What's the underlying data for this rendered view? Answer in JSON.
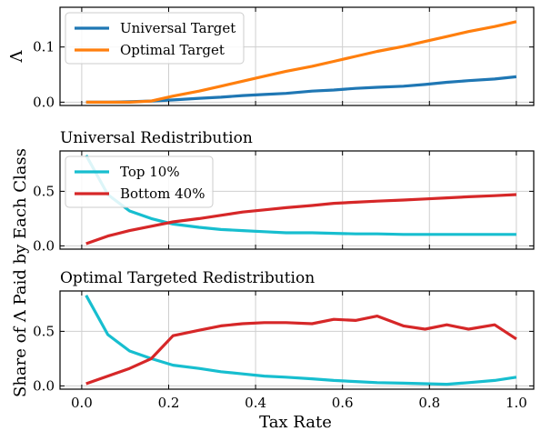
{
  "chart_data": [
    {
      "type": "line",
      "title": "",
      "ylabel": "Λ",
      "xlim": [
        -0.05,
        1.04
      ],
      "ylim": [
        -0.006,
        0.172
      ],
      "xticks": [
        "0.0",
        "0.2",
        "0.4",
        "0.6",
        "0.8",
        "1.0"
      ],
      "yticks": [
        {
          "v": 0.0,
          "label": "0.0"
        },
        {
          "v": 0.1,
          "label": "0.1"
        }
      ],
      "grid": true,
      "legend": "top-left",
      "series": [
        {
          "name": "Universal Target",
          "color": "#1f77b4",
          "x": [
            0.01,
            0.06,
            0.11,
            0.16,
            0.21,
            0.27,
            0.32,
            0.37,
            0.42,
            0.47,
            0.53,
            0.58,
            0.63,
            0.68,
            0.74,
            0.79,
            0.84,
            0.89,
            0.95,
            1.0
          ],
          "y": [
            0.0,
            0.0,
            0.001,
            0.002,
            0.004,
            0.007,
            0.009,
            0.012,
            0.014,
            0.016,
            0.02,
            0.022,
            0.025,
            0.027,
            0.029,
            0.032,
            0.036,
            0.039,
            0.042,
            0.046
          ]
        },
        {
          "name": "Optimal Target",
          "color": "#ff7f0e",
          "x": [
            0.01,
            0.06,
            0.11,
            0.16,
            0.21,
            0.27,
            0.32,
            0.37,
            0.42,
            0.47,
            0.53,
            0.58,
            0.63,
            0.68,
            0.74,
            0.79,
            0.84,
            0.89,
            0.95,
            1.0
          ],
          "y": [
            0.0,
            0.0,
            0.0,
            0.002,
            0.011,
            0.02,
            0.029,
            0.038,
            0.047,
            0.056,
            0.065,
            0.074,
            0.083,
            0.092,
            0.101,
            0.11,
            0.119,
            0.128,
            0.137,
            0.146
          ]
        }
      ]
    },
    {
      "type": "line",
      "title": "Universal Redistribution",
      "ylabel": "",
      "xlim": [
        -0.05,
        1.04
      ],
      "ylim": [
        -0.03,
        0.87
      ],
      "xticks": [
        "0.0",
        "0.2",
        "0.4",
        "0.6",
        "0.8",
        "1.0"
      ],
      "yticks": [
        {
          "v": 0.0,
          "label": "0.0"
        },
        {
          "v": 0.5,
          "label": "0.5"
        }
      ],
      "grid": true,
      "legend": "top-left",
      "series": [
        {
          "name": "Top 10%",
          "color": "#17becf",
          "x": [
            0.01,
            0.06,
            0.11,
            0.16,
            0.21,
            0.27,
            0.32,
            0.37,
            0.42,
            0.47,
            0.53,
            0.58,
            0.63,
            0.68,
            0.74,
            0.79,
            0.84,
            0.89,
            0.95,
            1.0
          ],
          "y": [
            0.83,
            0.47,
            0.32,
            0.25,
            0.2,
            0.17,
            0.15,
            0.14,
            0.13,
            0.12,
            0.12,
            0.115,
            0.11,
            0.11,
            0.105,
            0.105,
            0.105,
            0.105,
            0.105,
            0.105
          ]
        },
        {
          "name": "Bottom 40%",
          "color": "#d62728",
          "x": [
            0.01,
            0.06,
            0.11,
            0.16,
            0.21,
            0.27,
            0.32,
            0.37,
            0.42,
            0.47,
            0.53,
            0.58,
            0.63,
            0.68,
            0.74,
            0.79,
            0.84,
            0.89,
            0.95,
            1.0
          ],
          "y": [
            0.02,
            0.09,
            0.14,
            0.18,
            0.22,
            0.25,
            0.28,
            0.31,
            0.33,
            0.35,
            0.37,
            0.39,
            0.4,
            0.41,
            0.42,
            0.43,
            0.44,
            0.45,
            0.46,
            0.47
          ]
        }
      ]
    },
    {
      "type": "line",
      "title": "Optimal Targeted Redistribution",
      "ylabel": "",
      "xlabel": "Tax Rate",
      "xlim": [
        -0.05,
        1.04
      ],
      "ylim": [
        -0.03,
        0.87
      ],
      "xticks": [
        "0.0",
        "0.2",
        "0.4",
        "0.6",
        "0.8",
        "1.0"
      ],
      "yticks": [
        {
          "v": 0.0,
          "label": "0.0"
        },
        {
          "v": 0.5,
          "label": "0.5"
        }
      ],
      "grid": true,
      "series": [
        {
          "name": "Top 10%",
          "color": "#17becf",
          "x": [
            0.01,
            0.06,
            0.11,
            0.16,
            0.21,
            0.27,
            0.32,
            0.37,
            0.42,
            0.47,
            0.53,
            0.58,
            0.63,
            0.68,
            0.74,
            0.79,
            0.84,
            0.89,
            0.95,
            1.0
          ],
          "y": [
            0.83,
            0.47,
            0.32,
            0.25,
            0.19,
            0.16,
            0.13,
            0.11,
            0.09,
            0.08,
            0.065,
            0.05,
            0.04,
            0.03,
            0.025,
            0.02,
            0.015,
            0.03,
            0.05,
            0.08
          ]
        },
        {
          "name": "Bottom 40%",
          "color": "#d62728",
          "x": [
            0.01,
            0.06,
            0.11,
            0.16,
            0.21,
            0.27,
            0.32,
            0.37,
            0.42,
            0.47,
            0.53,
            0.58,
            0.63,
            0.68,
            0.74,
            0.79,
            0.84,
            0.89,
            0.95,
            1.0
          ],
          "y": [
            0.02,
            0.09,
            0.16,
            0.25,
            0.46,
            0.51,
            0.55,
            0.57,
            0.58,
            0.58,
            0.57,
            0.61,
            0.6,
            0.64,
            0.55,
            0.52,
            0.56,
            0.52,
            0.56,
            0.43
          ]
        }
      ]
    }
  ],
  "shared_ylabel": "Share of Λ Paid by Each Class"
}
